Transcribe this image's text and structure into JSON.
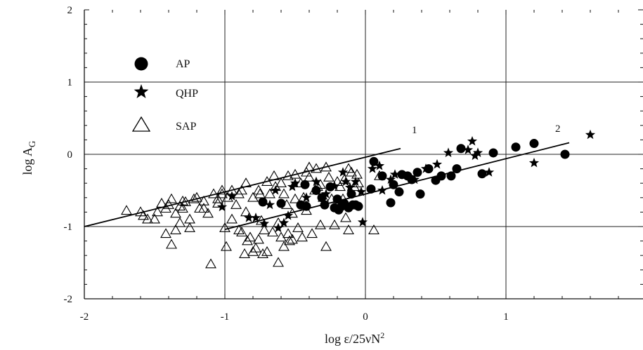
{
  "chart_data": {
    "type": "scatter",
    "title": "",
    "xlabel_main": "log ε/25νN",
    "xlabel_sup": "2",
    "ylabel_main": "log A",
    "ylabel_sub": "G",
    "xlim": [
      -2,
      2
    ],
    "ylim": [
      -2,
      2
    ],
    "x_ticks": [
      -2,
      -1,
      0,
      1
    ],
    "x_tick_labels": [
      "-2",
      "-1",
      "0",
      "1"
    ],
    "y_ticks": [
      -2,
      -1,
      0,
      1,
      2
    ],
    "y_tick_labels": [
      "-2",
      "-1",
      "0",
      "1",
      "2"
    ],
    "grid": true,
    "legend_position": "top-left",
    "series": [
      {
        "name": "AP",
        "marker": "filled-circle",
        "color": "#000000",
        "points": [
          [
            -0.73,
            -0.66
          ],
          [
            -0.6,
            -0.68
          ],
          [
            -0.46,
            -0.7
          ],
          [
            -0.43,
            -0.42
          ],
          [
            -0.42,
            -0.72
          ],
          [
            -0.35,
            -0.5
          ],
          [
            -0.31,
            -0.6
          ],
          [
            -0.29,
            -0.7
          ],
          [
            -0.25,
            -0.45
          ],
          [
            -0.22,
            -0.74
          ],
          [
            -0.2,
            -0.62
          ],
          [
            -0.19,
            -0.77
          ],
          [
            -0.17,
            -0.72
          ],
          [
            -0.15,
            -0.68
          ],
          [
            -0.12,
            -0.74
          ],
          [
            -0.1,
            -0.55
          ],
          [
            -0.09,
            -0.7
          ],
          [
            -0.07,
            -0.7
          ],
          [
            -0.05,
            -0.72
          ],
          [
            0.04,
            -0.48
          ],
          [
            0.06,
            -0.1
          ],
          [
            0.12,
            -0.3
          ],
          [
            0.18,
            -0.67
          ],
          [
            0.2,
            -0.42
          ],
          [
            0.24,
            -0.52
          ],
          [
            0.26,
            -0.28
          ],
          [
            0.3,
            -0.3
          ],
          [
            0.33,
            -0.35
          ],
          [
            0.37,
            -0.25
          ],
          [
            0.39,
            -0.55
          ],
          [
            0.45,
            -0.2
          ],
          [
            0.5,
            -0.36
          ],
          [
            0.54,
            -0.3
          ],
          [
            0.61,
            -0.3
          ],
          [
            0.65,
            -0.2
          ],
          [
            0.68,
            0.08
          ],
          [
            0.83,
            -0.27
          ],
          [
            0.91,
            0.02
          ],
          [
            1.07,
            0.1
          ],
          [
            1.2,
            0.15
          ],
          [
            1.42,
            0.0
          ]
        ]
      },
      {
        "name": "QHP",
        "marker": "filled-star",
        "color": "#000000",
        "points": [
          [
            -1.02,
            -0.73
          ],
          [
            -0.95,
            -0.58
          ],
          [
            -0.83,
            -0.88
          ],
          [
            -0.78,
            -0.88
          ],
          [
            -0.72,
            -0.96
          ],
          [
            -0.68,
            -0.7
          ],
          [
            -0.64,
            -0.5
          ],
          [
            -0.62,
            -1.02
          ],
          [
            -0.58,
            -0.95
          ],
          [
            -0.55,
            -0.85
          ],
          [
            -0.52,
            -0.45
          ],
          [
            -0.5,
            -0.4
          ],
          [
            -0.42,
            -0.6
          ],
          [
            -0.35,
            -0.38
          ],
          [
            -0.28,
            -0.55
          ],
          [
            -0.22,
            -0.44
          ],
          [
            -0.16,
            -0.25
          ],
          [
            -0.14,
            -0.38
          ],
          [
            -0.11,
            -0.46
          ],
          [
            -0.07,
            -0.38
          ],
          [
            -0.03,
            -0.52
          ],
          [
            -0.02,
            -0.94
          ],
          [
            0.05,
            -0.2
          ],
          [
            0.1,
            -0.16
          ],
          [
            0.12,
            -0.5
          ],
          [
            0.18,
            -0.35
          ],
          [
            0.21,
            -0.28
          ],
          [
            0.35,
            -0.35
          ],
          [
            0.43,
            -0.2
          ],
          [
            0.51,
            -0.14
          ],
          [
            0.59,
            0.02
          ],
          [
            0.73,
            0.06
          ],
          [
            0.76,
            0.18
          ],
          [
            0.78,
            -0.02
          ],
          [
            0.8,
            0.02
          ],
          [
            0.88,
            -0.25
          ],
          [
            1.2,
            -0.12
          ],
          [
            1.6,
            0.27
          ]
        ]
      },
      {
        "name": "SAP",
        "marker": "open-triangle",
        "color": "#000000",
        "points": [
          [
            -1.7,
            -0.78
          ],
          [
            -1.6,
            -0.8
          ],
          [
            -1.55,
            -0.9
          ],
          [
            -1.5,
            -0.9
          ],
          [
            -1.45,
            -0.68
          ],
          [
            -1.4,
            -0.7
          ],
          [
            -1.38,
            -0.62
          ],
          [
            -1.35,
            -0.82
          ],
          [
            -1.32,
            -0.95
          ],
          [
            -1.3,
            -0.65
          ],
          [
            -1.28,
            -0.66
          ],
          [
            -1.25,
            -0.9
          ],
          [
            -1.2,
            -0.6
          ],
          [
            -1.18,
            -0.75
          ],
          [
            -1.15,
            -0.65
          ],
          [
            -1.12,
            -0.82
          ],
          [
            -1.08,
            -0.55
          ],
          [
            -1.05,
            -0.62
          ],
          [
            -1.02,
            -0.5
          ],
          [
            -0.98,
            -0.6
          ],
          [
            -0.95,
            -0.9
          ],
          [
            -0.92,
            -0.7
          ],
          [
            -0.9,
            -1.05
          ],
          [
            -0.88,
            -0.5
          ],
          [
            -0.85,
            -0.8
          ],
          [
            -0.82,
            -1.15
          ],
          [
            -0.8,
            -0.6
          ],
          [
            -0.78,
            -1.3
          ],
          [
            -0.76,
            -0.5
          ],
          [
            -0.74,
            -0.92
          ],
          [
            -0.72,
            -1.05
          ],
          [
            -0.7,
            -1.35
          ],
          [
            -0.68,
            -0.55
          ],
          [
            -0.66,
            -1.08
          ],
          [
            -0.64,
            -0.45
          ],
          [
            -0.62,
            -0.95
          ],
          [
            -0.6,
            -1.15
          ],
          [
            -0.58,
            -0.55
          ],
          [
            -0.56,
            -0.7
          ],
          [
            -0.54,
            -1.2
          ],
          [
            -0.52,
            -0.82
          ],
          [
            -0.5,
            -0.62
          ],
          [
            -0.48,
            -1.02
          ],
          [
            -0.46,
            -0.4
          ],
          [
            -0.44,
            -0.6
          ],
          [
            -0.42,
            -0.78
          ],
          [
            -0.4,
            -0.32
          ],
          [
            -0.38,
            -1.1
          ],
          [
            -0.36,
            -0.5
          ],
          [
            -0.34,
            -0.45
          ],
          [
            -0.32,
            -0.98
          ],
          [
            -0.3,
            -0.6
          ],
          [
            -0.28,
            -1.28
          ],
          [
            -0.26,
            -0.32
          ],
          [
            -0.24,
            -0.62
          ],
          [
            -0.22,
            -0.98
          ],
          [
            -0.2,
            -0.38
          ],
          [
            -0.18,
            -0.45
          ],
          [
            -0.16,
            -0.62
          ],
          [
            -0.14,
            -0.88
          ],
          [
            -0.12,
            -1.05
          ],
          [
            -0.1,
            -0.25
          ],
          [
            -0.08,
            -0.45
          ],
          [
            -0.06,
            -0.28
          ],
          [
            0.06,
            -1.05
          ],
          [
            0.1,
            -0.3
          ],
          [
            -1.42,
            -1.1
          ],
          [
            -1.38,
            -1.25
          ],
          [
            -1.35,
            -1.05
          ],
          [
            -1.25,
            -1.02
          ],
          [
            -1.1,
            -1.52
          ],
          [
            -1.0,
            -1.02
          ],
          [
            -0.99,
            -1.28
          ],
          [
            -0.88,
            -1.08
          ],
          [
            -0.86,
            -1.38
          ],
          [
            -0.84,
            -1.2
          ],
          [
            -0.8,
            -1.35
          ],
          [
            -0.76,
            -1.18
          ],
          [
            -0.73,
            -1.38
          ],
          [
            -0.62,
            -1.5
          ],
          [
            -0.58,
            -1.28
          ],
          [
            -0.55,
            -1.1
          ],
          [
            -0.52,
            -1.18
          ],
          [
            -0.45,
            -1.15
          ],
          [
            -0.28,
            -0.18
          ],
          [
            -0.35,
            -0.2
          ],
          [
            -0.4,
            -0.18
          ],
          [
            -0.42,
            -0.25
          ],
          [
            -0.5,
            -0.28
          ],
          [
            -0.55,
            -0.3
          ],
          [
            -0.6,
            -0.4
          ],
          [
            -0.65,
            -0.3
          ],
          [
            -0.7,
            -0.38
          ],
          [
            -0.75,
            -0.55
          ],
          [
            -0.85,
            -0.4
          ],
          [
            -0.9,
            -0.55
          ],
          [
            -0.95,
            -0.5
          ],
          [
            -1.02,
            -0.55
          ],
          [
            -1.05,
            -0.68
          ],
          [
            -1.15,
            -0.75
          ],
          [
            -1.22,
            -0.62
          ],
          [
            -1.3,
            -0.75
          ],
          [
            -1.32,
            -0.72
          ],
          [
            -1.42,
            -0.75
          ],
          [
            -1.48,
            -0.8
          ],
          [
            -1.58,
            -0.85
          ],
          [
            -0.15,
            -0.35
          ],
          [
            -0.05,
            -0.4
          ],
          [
            -0.12,
            -0.2
          ],
          [
            -0.32,
            -0.42
          ]
        ]
      }
    ],
    "fit_lines": [
      {
        "label": "1",
        "x": [
          -2.0,
          0.25
        ],
        "y": [
          -1.0,
          0.08
        ]
      },
      {
        "label": "2",
        "x": [
          -1.0,
          1.45
        ],
        "y": [
          -1.04,
          0.16
        ]
      }
    ]
  }
}
